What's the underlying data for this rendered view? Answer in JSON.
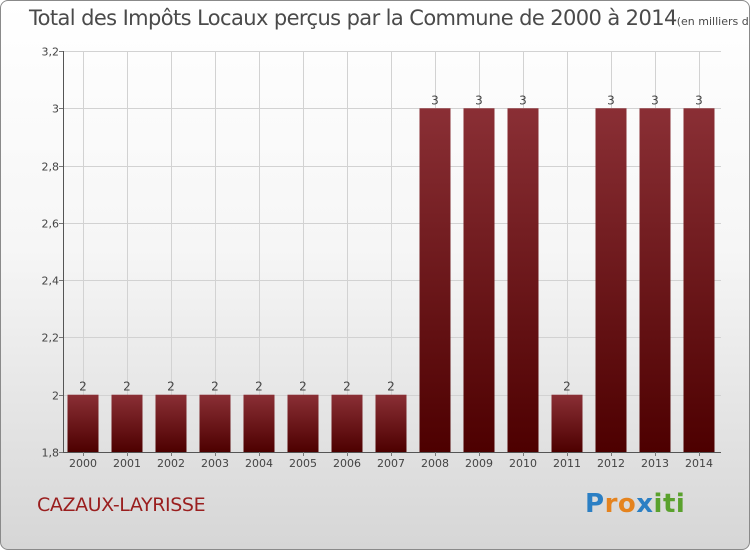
{
  "title": {
    "main": "Total des Impôts Locaux perçus par la Commune de 2000 à 2014",
    "unit": "(en milliers d'€)"
  },
  "commune": "CAZAUX-LAYRISSE",
  "brand": {
    "text": "Proxiti",
    "letters": [
      "P",
      "r",
      "o",
      "x",
      "i",
      "t",
      "i"
    ]
  },
  "colors": {
    "bar_top": "#8a2f35",
    "bar_bottom": "#4d0000",
    "label": "#444444",
    "commune": "#9a1e1e"
  },
  "chart_data": {
    "type": "bar",
    "title": "Total des Impôts Locaux perçus par la Commune de 2000 à 2014",
    "xlabel": "",
    "ylabel": "",
    "categories": [
      "2000",
      "2001",
      "2002",
      "2003",
      "2004",
      "2005",
      "2006",
      "2007",
      "2008",
      "2009",
      "2010",
      "2011",
      "2012",
      "2013",
      "2014"
    ],
    "values": [
      2,
      2,
      2,
      2,
      2,
      2,
      2,
      2,
      3,
      3,
      3,
      2,
      3,
      3,
      3
    ],
    "value_labels": [
      "2",
      "2",
      "2",
      "2",
      "2",
      "2",
      "2",
      "2",
      "3",
      "3",
      "3",
      "2",
      "3",
      "3",
      "3"
    ],
    "ylim": [
      1.8,
      3.2
    ],
    "yticks": [
      1.8,
      2,
      2.2,
      2.4,
      2.6,
      2.8,
      3,
      3.2
    ],
    "ytick_labels": [
      "1,8",
      "2",
      "2,2",
      "2,4",
      "2,6",
      "2,8",
      "3",
      "3,2"
    ],
    "grid": true
  }
}
